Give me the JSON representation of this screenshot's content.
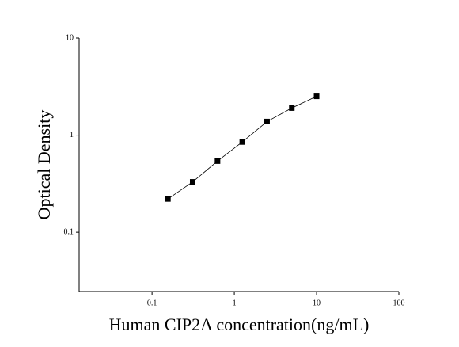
{
  "chart_data": {
    "type": "scatter",
    "x_label": "Human CIP2A concentration(ng/mL)",
    "y_label": "Optical Density",
    "x": [
      0.156,
      0.312,
      0.625,
      1.25,
      2.5,
      5,
      10
    ],
    "series": [
      {
        "color": "#000000",
        "values": [
          0.22,
          0.33,
          0.54,
          0.85,
          1.38,
          1.9,
          2.51
        ]
      }
    ],
    "xlim": [
      0.013,
      100
    ],
    "ylim": [
      0.0245,
      10
    ],
    "xticks": [
      0.1,
      1,
      10,
      100
    ],
    "yticks": [
      0.1,
      1,
      10
    ],
    "log_x": true,
    "log_y": true,
    "line": true
  }
}
